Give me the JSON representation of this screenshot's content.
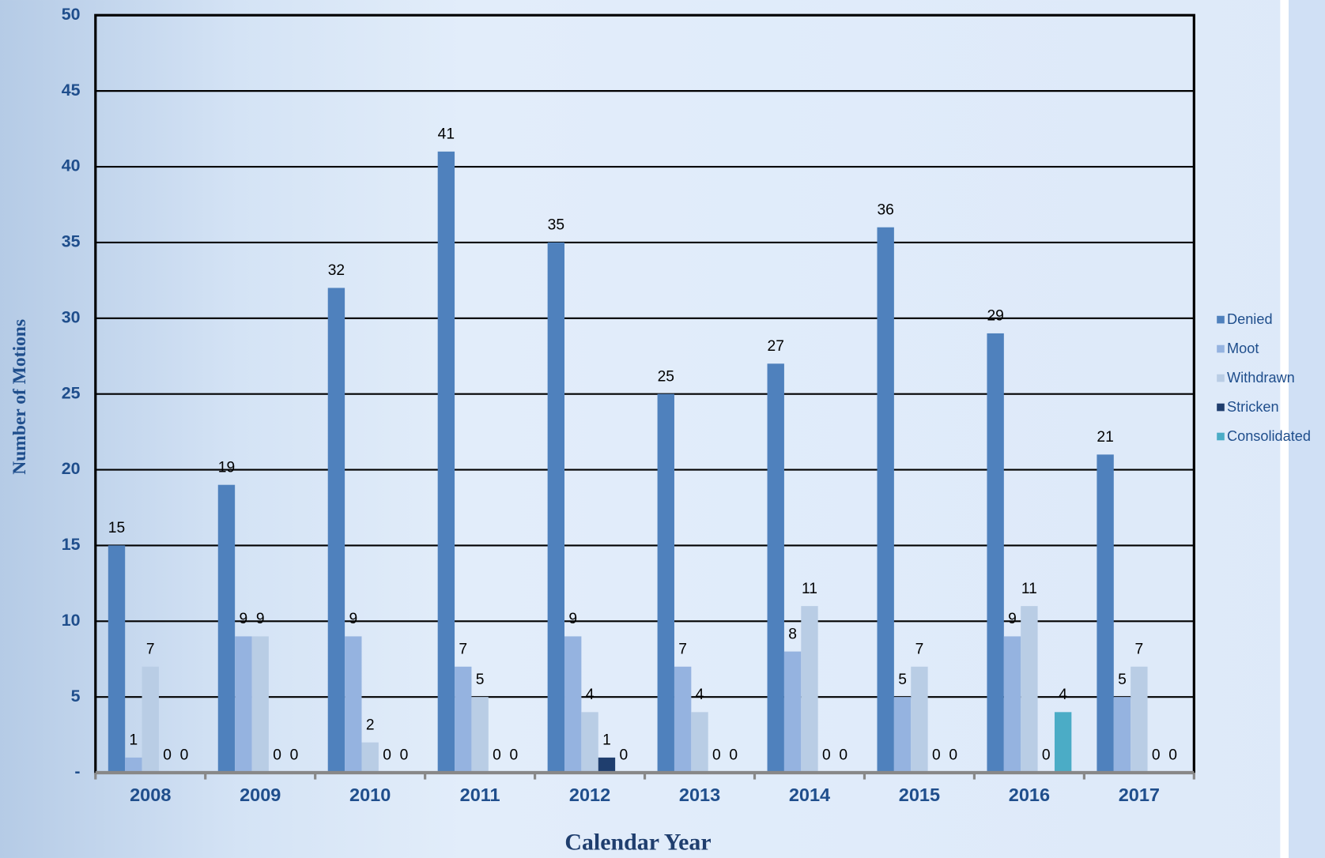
{
  "chart_data": {
    "type": "bar",
    "y_label": "Number of Motions",
    "x_label": "Calendar Year",
    "categories": [
      "2008",
      "2009",
      "2010",
      "2011",
      "2012",
      "2013",
      "2014",
      "2015",
      "2016",
      "2017"
    ],
    "series": [
      {
        "name": "Denied",
        "color": "#4f81bd",
        "values": [
          15,
          19,
          32,
          41,
          35,
          25,
          27,
          36,
          29,
          21
        ]
      },
      {
        "name": "Moot",
        "color": "#95b3e0",
        "values": [
          1,
          9,
          9,
          7,
          9,
          7,
          8,
          5,
          9,
          5
        ]
      },
      {
        "name": "Withdrawn",
        "color": "#b9cde5",
        "values": [
          7,
          9,
          2,
          5,
          4,
          4,
          11,
          7,
          11,
          7
        ]
      },
      {
        "name": "Stricken",
        "color": "#1f3e6e",
        "values": [
          0,
          0,
          0,
          0,
          1,
          0,
          0,
          0,
          0,
          0
        ]
      },
      {
        "name": "Consolidated",
        "color": "#4bacc6",
        "values": [
          0,
          0,
          0,
          0,
          0,
          0,
          0,
          0,
          4,
          0
        ]
      }
    ],
    "ylim": [
      0,
      50
    ],
    "yticks": [
      {
        "value": 0,
        "label": "-"
      },
      5,
      10,
      15,
      20,
      25,
      30,
      35,
      40,
      45,
      50
    ],
    "grid": true,
    "legend": "right"
  }
}
